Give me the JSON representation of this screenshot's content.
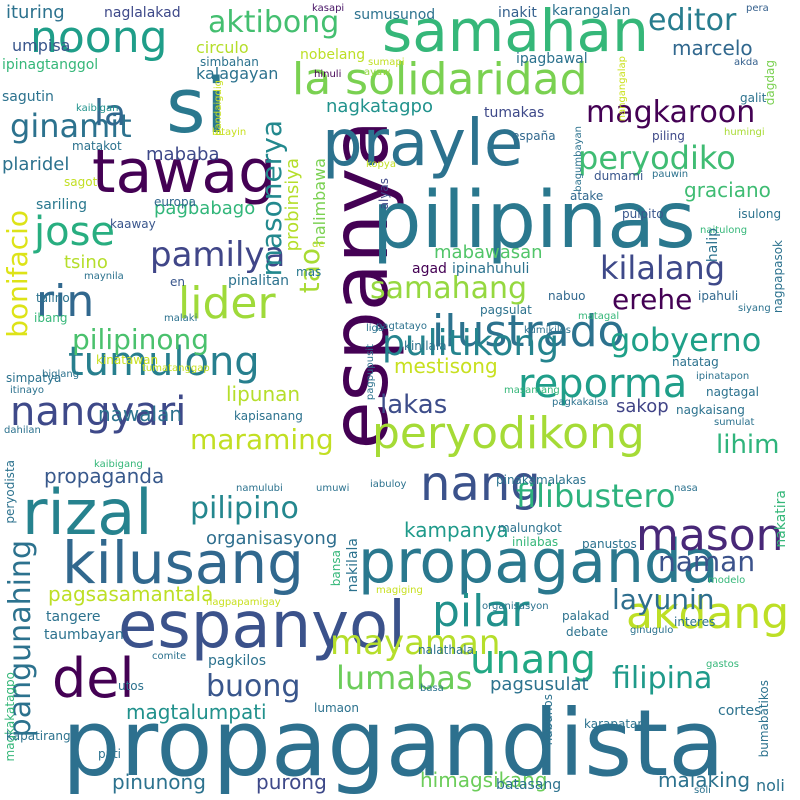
{
  "words": [
    {
      "text": "propagandista",
      "color": "#2d708e"
    },
    {
      "text": "espanya",
      "color": "#440154"
    },
    {
      "text": "pilipinas",
      "color": "#2a788e"
    },
    {
      "text": "espanyol",
      "color": "#3b528b"
    },
    {
      "text": "propaganda",
      "color": "#2a788e"
    },
    {
      "text": "kilusang",
      "color": "#31688e"
    },
    {
      "text": "rizal",
      "color": "#26828e"
    },
    {
      "text": "prayle",
      "color": "#2c728e"
    },
    {
      "text": "tawag",
      "color": "#440154"
    },
    {
      "text": "samahan",
      "color": "#35b779"
    },
    {
      "text": "si",
      "color": "#2a788e"
    },
    {
      "text": "la solidaridad",
      "color": "#7ad151"
    },
    {
      "text": "del",
      "color": "#440154"
    },
    {
      "text": "nang",
      "color": "#3b528b"
    },
    {
      "text": "peryodikong",
      "color": "#a5db36"
    },
    {
      "text": "ilustrado",
      "color": "#2c728e"
    },
    {
      "text": "pilar",
      "color": "#21918c"
    },
    {
      "text": "akdang",
      "color": "#bddf26"
    },
    {
      "text": "mason",
      "color": "#482878"
    },
    {
      "text": "tumulong",
      "color": "#277f8e"
    },
    {
      "text": "reporma",
      "color": "#1f9e89"
    },
    {
      "text": "nangyari",
      "color": "#3e4989"
    },
    {
      "text": "noong",
      "color": "#1f9e89"
    },
    {
      "text": "pamilya",
      "color": "#404688"
    },
    {
      "text": "lider",
      "color": "#9fda3a"
    },
    {
      "text": "rin",
      "color": "#31688e"
    },
    {
      "text": "jose",
      "color": "#28ae80"
    },
    {
      "text": "unang",
      "color": "#22a884"
    },
    {
      "text": "pulitikong",
      "color": "#25848e"
    },
    {
      "text": "mayaman",
      "color": "#b5de2b"
    },
    {
      "text": "filibustero",
      "color": "#2db27d"
    },
    {
      "text": "peryodiko",
      "color": "#3fbc73"
    },
    {
      "text": "magkaroon",
      "color": "#440154"
    },
    {
      "text": "gobyerno",
      "color": "#1fa088"
    },
    {
      "text": "kilalang",
      "color": "#3e4989"
    },
    {
      "text": "lumabas",
      "color": "#6ccd5a"
    },
    {
      "text": "maraming",
      "color": "#c2df23"
    },
    {
      "text": "pilipino",
      "color": "#24878e"
    },
    {
      "text": "pilipinong",
      "color": "#4ac16d"
    },
    {
      "text": "ginamit",
      "color": "#2c728e"
    },
    {
      "text": "la",
      "color": "#31688e"
    },
    {
      "text": "aktibong",
      "color": "#44bf70"
    },
    {
      "text": "editor",
      "color": "#287d8e"
    },
    {
      "text": "samahang",
      "color": "#95d840"
    },
    {
      "text": "buong",
      "color": "#39568c"
    },
    {
      "text": "filipina",
      "color": "#1f9a8a"
    },
    {
      "text": "layunin",
      "color": "#2e6e8e"
    },
    {
      "text": "naman",
      "color": "#3b528b"
    },
    {
      "text": "erehe",
      "color": "#440154"
    },
    {
      "text": "lakas",
      "color": "#3d4d8a"
    },
    {
      "text": "lihim",
      "color": "#2fb47c"
    },
    {
      "text": "masonerya",
      "color": "#23898e"
    },
    {
      "text": "bonifacio",
      "color": "#dde318"
    },
    {
      "text": "pangunahing",
      "color": "#2c728e"
    },
    {
      "text": "tao",
      "color": "#a8db34"
    },
    {
      "text": "propaganda",
      "color": "#38598c"
    },
    {
      "text": "pagsasamantala",
      "color": "#bddf26"
    },
    {
      "text": "kampanya",
      "color": "#1f9a8a"
    },
    {
      "text": "organisasyong",
      "color": "#2e6e8e"
    },
    {
      "text": "pinunong",
      "color": "#2c728e"
    },
    {
      "text": "purong",
      "color": "#3e4989"
    },
    {
      "text": "himagsikang",
      "color": "#6ccd5a"
    },
    {
      "text": "malaking",
      "color": "#2c728e"
    },
    {
      "text": "magtalumpati",
      "color": "#21918c"
    },
    {
      "text": "pagsusulat",
      "color": "#2c728e"
    },
    {
      "text": "lipunan",
      "color": "#b5de2b"
    },
    {
      "text": "nawalan",
      "color": "#2c728e"
    },
    {
      "text": "mestisong",
      "color": "#c8e020"
    },
    {
      "text": "mababa",
      "color": "#3e4989"
    },
    {
      "text": "marcelo",
      "color": "#31688e"
    },
    {
      "text": "graciano",
      "color": "#3fbc73"
    },
    {
      "text": "sakop",
      "color": "#414487"
    },
    {
      "text": "pagbabago",
      "color": "#32b67a"
    },
    {
      "text": "plaridel",
      "color": "#2c728e"
    },
    {
      "text": "sariling",
      "color": "#2a788e"
    },
    {
      "text": "mabawasan",
      "color": "#52c569"
    },
    {
      "text": "tsino",
      "color": "#b5de2b"
    },
    {
      "text": "probinsiya",
      "color": "#b5de2b"
    },
    {
      "text": "halimbawa",
      "color": "#7ad151"
    },
    {
      "text": "nagkatagpo",
      "color": "#20928c"
    },
    {
      "text": "kalagayan",
      "color": "#2c728e"
    },
    {
      "text": "umpisa",
      "color": "#39568c"
    },
    {
      "text": "ituring",
      "color": "#2c728e"
    },
    {
      "text": "naglalakad",
      "color": "#3e4989"
    },
    {
      "text": "kasapi",
      "color": "#471365"
    },
    {
      "text": "sumusunod",
      "color": "#2c728e"
    },
    {
      "text": "inakit",
      "color": "#35608d"
    },
    {
      "text": "karangalan",
      "color": "#2c728e"
    },
    {
      "text": "pera",
      "color": "#35608d"
    },
    {
      "text": "circulo",
      "color": "#b5de2b"
    },
    {
      "text": "ipinagtanggol",
      "color": "#35b779"
    },
    {
      "text": "simbahan",
      "color": "#2c728e"
    },
    {
      "text": "nobelang",
      "color": "#bddf26"
    },
    {
      "text": "sumapi",
      "color": "#c2df23"
    },
    {
      "text": "ipagbawal",
      "color": "#2c728e"
    },
    {
      "text": "nangangalap",
      "color": "#cae11f"
    },
    {
      "text": "akda",
      "color": "#35608d"
    },
    {
      "text": "dagdag",
      "color": "#7ad151"
    },
    {
      "text": "hinuli",
      "color": "#440154"
    },
    {
      "text": "ayaw",
      "color": "#95d840"
    },
    {
      "text": "sagutin",
      "color": "#2c728e"
    },
    {
      "text": "kaibigan",
      "color": "#20928c"
    },
    {
      "text": "pandaigdig",
      "color": "#c8e020"
    },
    {
      "text": "tumakas",
      "color": "#3e4989"
    },
    {
      "text": "galit",
      "color": "#2c728e"
    },
    {
      "text": "matakot",
      "color": "#2c728e"
    },
    {
      "text": "bitayin",
      "color": "#c8e020"
    },
    {
      "text": "españa",
      "color": "#31688e"
    },
    {
      "text": "piling",
      "color": "#3e4989"
    },
    {
      "text": "humingi",
      "color": "#a8db34"
    },
    {
      "text": "bagumbayan",
      "color": "#2c728e"
    },
    {
      "text": "sagot",
      "color": "#c2df23"
    },
    {
      "text": "kopya",
      "color": "#c2df23"
    },
    {
      "text": "dumami",
      "color": "#39568c"
    },
    {
      "text": "pauwin",
      "color": "#2c728e"
    },
    {
      "text": "alyas",
      "color": "#3e4989"
    },
    {
      "text": "europa",
      "color": "#31688e"
    },
    {
      "text": "atake",
      "color": "#31688e"
    },
    {
      "text": "pulpito",
      "color": "#39568c"
    },
    {
      "text": "isulong",
      "color": "#2c728e"
    },
    {
      "text": "kaaway",
      "color": "#39568c"
    },
    {
      "text": "naitulong",
      "color": "#35b779"
    },
    {
      "text": "de",
      "color": "#c2df23"
    },
    {
      "text": "maynila",
      "color": "#2c728e"
    },
    {
      "text": "mas",
      "color": "#2a788e"
    },
    {
      "text": "ipinahuhuli",
      "color": "#2c728e"
    },
    {
      "text": "agad",
      "color": "#440154"
    },
    {
      "text": "halip",
      "color": "#2c728e"
    },
    {
      "text": "en",
      "color": "#39568c"
    },
    {
      "text": "pinalitan",
      "color": "#2c728e"
    },
    {
      "text": "nabuo",
      "color": "#31688e"
    },
    {
      "text": "ipahuli",
      "color": "#31688e"
    },
    {
      "text": "nagpapasok",
      "color": "#2c728e"
    },
    {
      "text": "talino",
      "color": "#2c728e"
    },
    {
      "text": "malaki",
      "color": "#2c728e"
    },
    {
      "text": "pagtatayo",
      "color": "#2c728e"
    },
    {
      "text": "pagsulat",
      "color": "#2c728e"
    },
    {
      "text": "matagal",
      "color": "#35b779"
    },
    {
      "text": "siyang",
      "color": "#2c728e"
    },
    {
      "text": "ibang",
      "color": "#35b779"
    },
    {
      "text": "liga",
      "color": "#2c728e"
    },
    {
      "text": "kinilala",
      "color": "#2c728e"
    },
    {
      "text": "kinatawan",
      "color": "#c8e020"
    },
    {
      "text": "kumikilos",
      "color": "#2c728e"
    },
    {
      "text": "natatag",
      "color": "#2c728e"
    },
    {
      "text": "biglang",
      "color": "#2c728e"
    },
    {
      "text": "tumatanggap",
      "color": "#c8e020"
    },
    {
      "text": "pagpupusit",
      "color": "#2c728e"
    },
    {
      "text": "ipinatapon",
      "color": "#2c728e"
    },
    {
      "text": "simpatya",
      "color": "#2c728e"
    },
    {
      "text": "nagtagal",
      "color": "#2c728e"
    },
    {
      "text": "itinayo",
      "color": "#2c728e"
    },
    {
      "text": "masamang",
      "color": "#35b779"
    },
    {
      "text": "pagkakaisa",
      "color": "#2c728e"
    },
    {
      "text": "nagkaisang",
      "color": "#2c728e"
    },
    {
      "text": "dahilan",
      "color": "#2c728e"
    },
    {
      "text": "kapisanang",
      "color": "#2c728e"
    },
    {
      "text": "sumulat",
      "color": "#2c728e"
    },
    {
      "text": "peryodista",
      "color": "#2c728e"
    },
    {
      "text": "kaibigang",
      "color": "#35b779"
    },
    {
      "text": "namulubi",
      "color": "#2c728e"
    },
    {
      "text": "umuwi",
      "color": "#2c728e"
    },
    {
      "text": "iabuloy",
      "color": "#2c728e"
    },
    {
      "text": "pinakamalakas",
      "color": "#2c728e"
    },
    {
      "text": "nasa",
      "color": "#2c728e"
    },
    {
      "text": "malungkot",
      "color": "#2c728e"
    },
    {
      "text": "inilabas",
      "color": "#35b779"
    },
    {
      "text": "panustos",
      "color": "#2c728e"
    },
    {
      "text": "nakatira",
      "color": "#35b779"
    },
    {
      "text": "nakilala",
      "color": "#2c728e"
    },
    {
      "text": "bansa",
      "color": "#35b779"
    },
    {
      "text": "magiging",
      "color": "#c8e020"
    },
    {
      "text": "modelo",
      "color": "#35b779"
    },
    {
      "text": "nagpapamigay",
      "color": "#c8e020"
    },
    {
      "text": "tangere",
      "color": "#2c728e"
    },
    {
      "text": "palakad",
      "color": "#2c728e"
    },
    {
      "text": "taumbayan",
      "color": "#2c728e"
    },
    {
      "text": "ginugulo",
      "color": "#2c728e"
    },
    {
      "text": "organisasyon",
      "color": "#2c728e"
    },
    {
      "text": "debate",
      "color": "#2c728e"
    },
    {
      "text": "interes",
      "color": "#2c728e"
    },
    {
      "text": "comite",
      "color": "#2c728e"
    },
    {
      "text": "pagkilos",
      "color": "#2c728e"
    },
    {
      "text": "nalathala",
      "color": "#2c728e"
    },
    {
      "text": "gastos",
      "color": "#35b779"
    },
    {
      "text": "utos",
      "color": "#2c728e"
    },
    {
      "text": "magkakatagpo",
      "color": "#35b779"
    },
    {
      "text": "basa",
      "color": "#2c728e"
    },
    {
      "text": "lumaon",
      "color": "#2c728e"
    },
    {
      "text": "cortes",
      "color": "#2c728e"
    },
    {
      "text": "bumabatikos",
      "color": "#2c728e"
    },
    {
      "text": "nabuhos",
      "color": "#2c728e"
    },
    {
      "text": "karapatan",
      "color": "#2c728e"
    },
    {
      "text": "kapatirang",
      "color": "#2c728e"
    },
    {
      "text": "pati",
      "color": "#2c728e"
    },
    {
      "text": "batasang",
      "color": "#2c728e"
    },
    {
      "text": "noli",
      "color": "#2c728e"
    },
    {
      "text": "soli",
      "color": "#2c728e"
    }
  ]
}
